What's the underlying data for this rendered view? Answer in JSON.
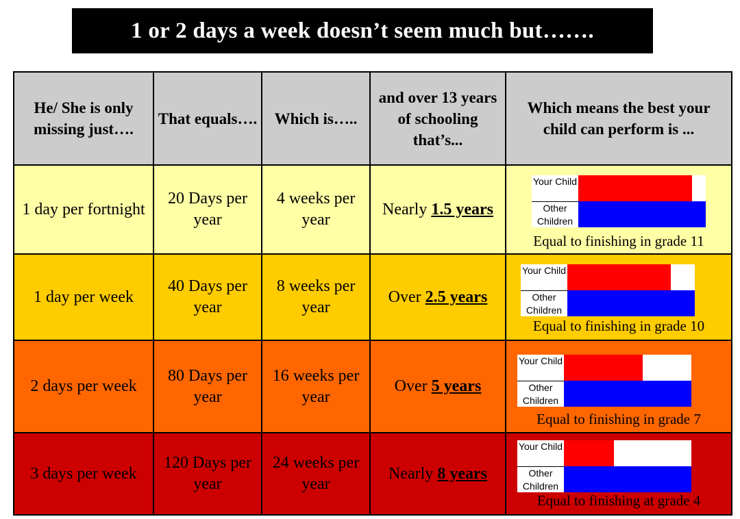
{
  "title": "1 or 2 days a week doesn’t seem much but…….",
  "headers": {
    "col1": "He/ She is only missing just….",
    "col2": "That equals….",
    "col3": "Which is…..",
    "col4": "and over 13 years of schooling that’s...",
    "col5": "Which means the best your child can perform is ..."
  },
  "rows": [
    {
      "missing": "1 day per fortnight",
      "days": "20 Days per year",
      "weeks": "4 weeks per year",
      "prefix": "Nearly ",
      "years": "1.5 years",
      "caption": "Equal to finishing in grade 11"
    },
    {
      "missing": "1 day per week",
      "days": "40 Days per year",
      "weeks": "8 weeks per year",
      "prefix": "Over ",
      "years": "2.5 years",
      "caption": "Equal to finishing in grade 10"
    },
    {
      "missing": "2 days per week",
      "days": "80 Days per year",
      "weeks": "16 weeks per year",
      "prefix": "Over ",
      "years": "5 years",
      "caption": "Equal to finishing in grade 7"
    },
    {
      "missing": "3 days per week",
      "days": "120 Days per year",
      "weeks": "24 weeks per year",
      "prefix": "Nearly ",
      "years": "8 years",
      "caption": "Equal to finishing at grade 4"
    }
  ],
  "chart_data": {
    "type": "bar",
    "orientation": "horizontal",
    "categories": [
      "Your Child",
      "Other Children"
    ],
    "labels": {
      "your_child": "Your Child",
      "other_children": "Other Children"
    },
    "colors": {
      "your_child": "#ff0000",
      "other_children": "#0000ff"
    },
    "charts": [
      {
        "your_child": 0.89,
        "other_children": 1.0
      },
      {
        "your_child": 0.81,
        "other_children": 1.0
      },
      {
        "your_child": 0.62,
        "other_children": 1.0
      },
      {
        "your_child": 0.39,
        "other_children": 1.0
      }
    ]
  }
}
